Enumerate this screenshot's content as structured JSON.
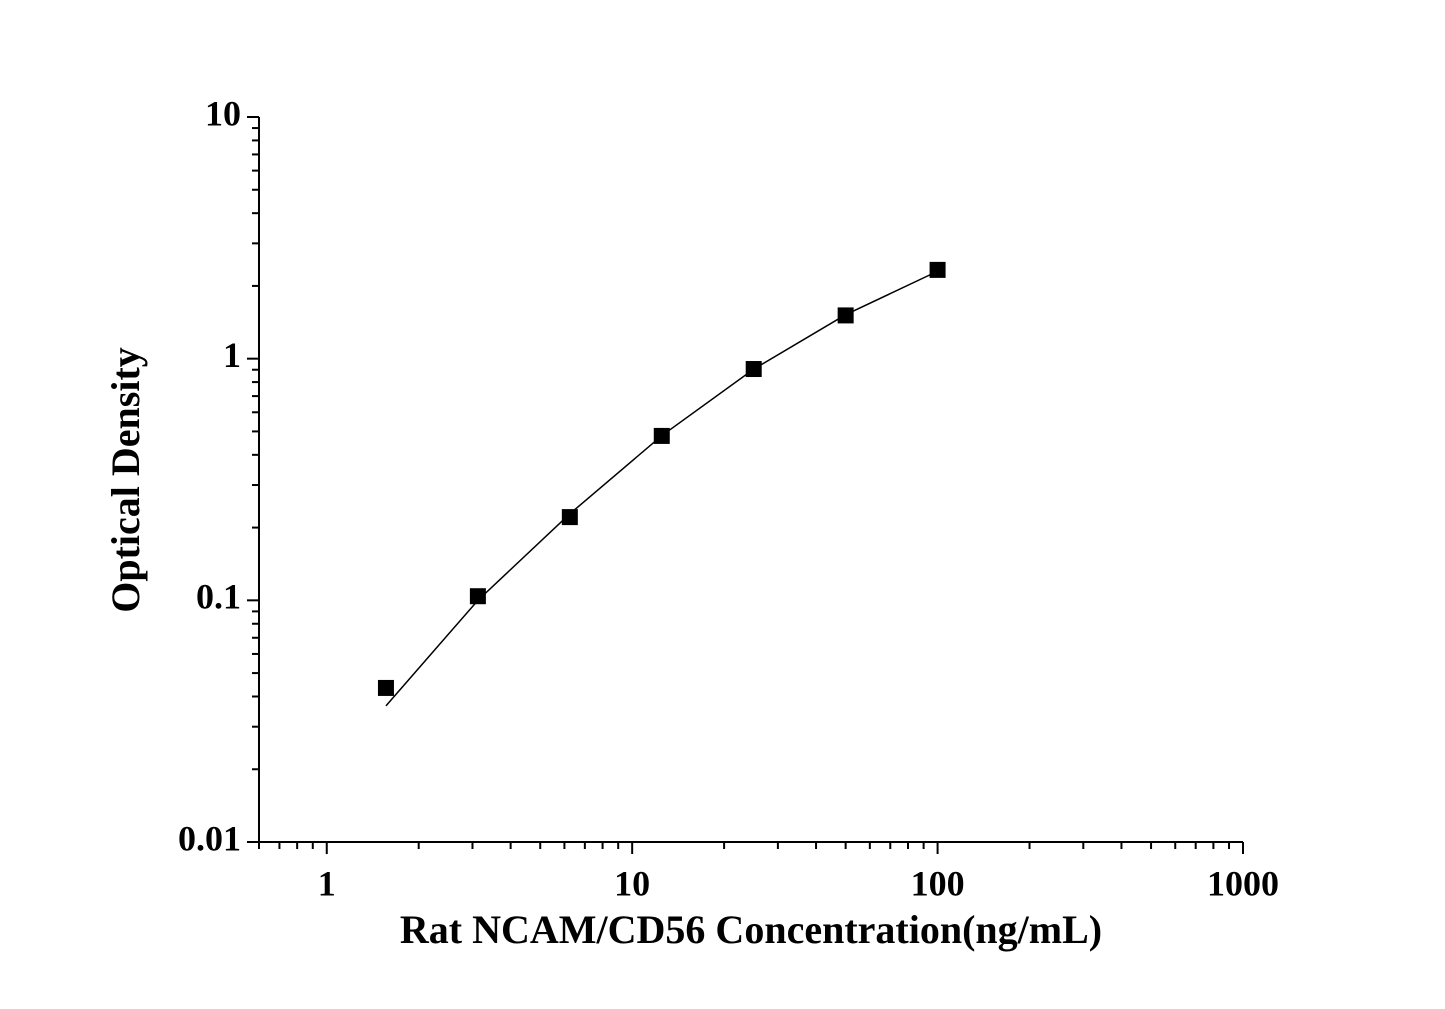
{
  "chart_data": {
    "type": "scatter",
    "x_label": "Rat NCAM/CD56 Concentration(ng/mL)",
    "y_label": "Optical Density",
    "x_log": true,
    "y_log": true,
    "xlim": [
      0.6,
      1000
    ],
    "xticks": [
      1,
      10,
      100,
      1000
    ],
    "ylim": [
      0.01,
      10
    ],
    "yticks": [
      0.01,
      0.1,
      1,
      10
    ],
    "minor_ticks": true,
    "series": [
      {
        "style": "markers",
        "color": "#000000",
        "x": [
          1.5625,
          3.125,
          6.25,
          12.5,
          25,
          50,
          100
        ],
        "values": [
          0.0434,
          0.104,
          0.221,
          0.479,
          0.906,
          1.51,
          2.33
        ]
      },
      {
        "style": "line",
        "color": "#000000",
        "x": [
          1.5625,
          3.125,
          6.25,
          12.5,
          25,
          50,
          100
        ],
        "values": [
          0.0366,
          0.1,
          0.228,
          0.48,
          0.905,
          1.52,
          2.3
        ]
      }
    ]
  }
}
